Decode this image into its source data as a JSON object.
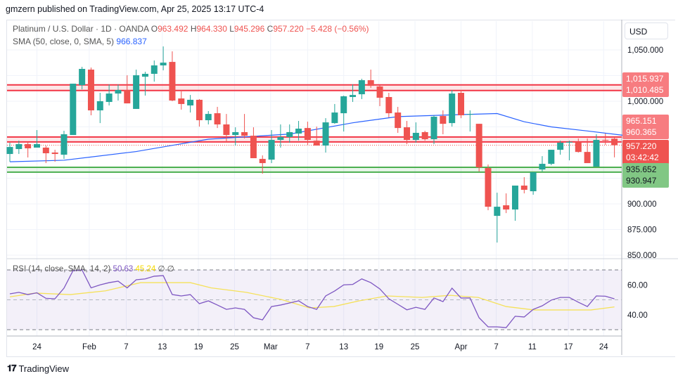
{
  "publish_line": "gmzern published on TradingView.com, Apr 25, 2025 13:17 UTC-4",
  "legend": {
    "symbol": "Platinum / U.S. Dollar · 1D · OANDA",
    "o_label": "O",
    "o": "963.492",
    "h_label": "H",
    "h": "964.330",
    "l_label": "L",
    "l": "945.296",
    "c_label": "C",
    "c": "957.220",
    "change": "−5.428 (−0.56%)",
    "sma_label": "SMA (50, close, 0, SMA, 5)",
    "sma_value": "966.837",
    "rsi_label": "RSI (14, close, SMA, 14, 2)",
    "rsi_value": "50.63",
    "rsi_sma_value": "45.24",
    "rsi_extra": "∅ ∅"
  },
  "currency": "USD",
  "brand": "TradingView",
  "colors": {
    "up": "#26a69a",
    "down": "#ef5350",
    "sma": "#2962ff",
    "rsi": "#7e57c2",
    "rsi_sma": "#f5e15a",
    "zone_red": "#f23645",
    "zone_green": "#4caf50"
  },
  "chart_data": [
    {
      "type": "candlestick",
      "title": "Platinum / U.S. Dollar · 1D · OANDA",
      "ylim": [
        850,
        1065
      ],
      "price_ticks": [
        "1,050.000",
        "1,000.000",
        "900.000",
        "875.000",
        "850.000"
      ],
      "price_tick_values": [
        1050,
        1000,
        900,
        875,
        850
      ],
      "x_ticks": [
        {
          "label": "24",
          "index": 3
        },
        {
          "label": "Feb",
          "index": 8.8
        },
        {
          "label": "7",
          "index": 12.9
        },
        {
          "label": "13",
          "index": 16.9
        },
        {
          "label": "19",
          "index": 20.9
        },
        {
          "label": "25",
          "index": 24.9
        },
        {
          "label": "Mar",
          "index": 28.9
        },
        {
          "label": "7",
          "index": 33
        },
        {
          "label": "13",
          "index": 37
        },
        {
          "label": "19",
          "index": 40.9
        },
        {
          "label": "25",
          "index": 44.9
        },
        {
          "label": "Apr",
          "index": 50
        },
        {
          "label": "7",
          "index": 53.9
        },
        {
          "label": "11",
          "index": 57.9
        },
        {
          "label": "17",
          "index": 61.9
        },
        {
          "label": "24",
          "index": 65.8
        }
      ],
      "ohlc": [
        [
          948.6,
          959.6,
          941.1,
          955.4
        ],
        [
          953.4,
          961.6,
          948.6,
          958.2
        ],
        [
          958.2,
          960.2,
          945.2,
          954.1
        ],
        [
          954.8,
          971.9,
          954.8,
          958.2
        ],
        [
          954.8,
          956.8,
          939.7,
          949.3
        ],
        [
          950.0,
          952.7,
          941.1,
          948.6
        ],
        [
          947.9,
          971.2,
          943.8,
          967.8
        ],
        [
          967.1,
          1017.1,
          967.1,
          1017.1
        ],
        [
          1015.7,
          1033.5,
          1011.6,
          1031.5
        ],
        [
          1030.8,
          1032.8,
          986.3,
          991.1
        ],
        [
          991.1,
          1008.2,
          978.7,
          1000.0
        ],
        [
          999.3,
          1016.4,
          995.9,
          1007.5
        ],
        [
          1007.5,
          1016.4,
          1000.7,
          1010.9
        ],
        [
          1010.9,
          1025.3,
          997.9,
          997.9
        ],
        [
          992.5,
          1030.8,
          992.5,
          1025.3
        ],
        [
          1023.9,
          1028.7,
          1005.5,
          1026.7
        ],
        [
          1026.7,
          1039.7,
          1019.1,
          1034.9
        ],
        [
          1034.9,
          1053.4,
          1030.1,
          1037.6
        ],
        [
          1038.3,
          1048.6,
          1000.0,
          1000.7
        ],
        [
          1002.7,
          1009.6,
          991.8,
          997.3
        ],
        [
          995.9,
          1006.1,
          989.0,
          1001.4
        ],
        [
          1001.4,
          1002.1,
          975.3,
          981.5
        ],
        [
          981.5,
          990.4,
          977.4,
          987.6
        ],
        [
          988.3,
          994.5,
          973.9,
          977.4
        ],
        [
          977.4,
          987.6,
          959.6,
          967.1
        ],
        [
          967.1,
          974.6,
          956.8,
          969.9
        ],
        [
          969.9,
          987.6,
          963.7,
          966.4
        ],
        [
          966.4,
          974.6,
          944.5,
          944.5
        ],
        [
          943.8,
          947.2,
          929.4,
          939.7
        ],
        [
          943.1,
          971.9,
          939.7,
          962.3
        ],
        [
          962.3,
          977.4,
          954.8,
          965.1
        ],
        [
          965.1,
          977.4,
          959.6,
          969.9
        ],
        [
          968.5,
          980.8,
          961.6,
          973.3
        ],
        [
          973.9,
          980.1,
          957.5,
          962.3
        ],
        [
          961.6,
          975.3,
          956.8,
          956.8
        ],
        [
          956.8,
          983.5,
          950.0,
          979.4
        ],
        [
          978.7,
          997.3,
          978.0,
          989.0
        ],
        [
          988.3,
          1005.5,
          970.5,
          1004.8
        ],
        [
          1004.1,
          1016.4,
          999.3,
          1006.1
        ],
        [
          1006.8,
          1021.9,
          1002.1,
          1020.5
        ],
        [
          1020.5,
          1030.8,
          1013.0,
          1015.0
        ],
        [
          1014.4,
          1015.7,
          995.2,
          1003.4
        ],
        [
          1004.1,
          1008.2,
          984.2,
          988.3
        ],
        [
          989.0,
          994.5,
          969.2,
          973.9
        ],
        [
          974.6,
          980.8,
          958.2,
          962.3
        ],
        [
          962.3,
          979.4,
          959.6,
          969.2
        ],
        [
          969.9,
          971.2,
          961.6,
          963.0
        ],
        [
          963.0,
          986.3,
          958.2,
          984.9
        ],
        [
          985.6,
          991.1,
          967.8,
          978.0
        ],
        [
          978.7,
          1010.9,
          975.3,
          1007.5
        ],
        [
          1008.2,
          1010.9,
          983.5,
          986.3
        ],
        [
          986.9,
          991.1,
          970.5,
          987.6
        ],
        [
          978.0,
          978.0,
          931.5,
          935.6
        ],
        [
          934.9,
          938.3,
          893.8,
          897.2
        ],
        [
          888.3,
          910.9,
          862.3,
          897.2
        ],
        [
          898.6,
          910.2,
          891.0,
          894.5
        ],
        [
          894.5,
          917.8,
          883.5,
          917.8
        ],
        [
          917.8,
          926.0,
          910.2,
          913.7
        ],
        [
          912.3,
          930.8,
          908.9,
          930.8
        ],
        [
          933.5,
          946.5,
          931.5,
          939.0
        ],
        [
          939.0,
          952.7,
          937.6,
          952.7
        ],
        [
          952.7,
          961.6,
          947.9,
          959.6
        ],
        [
          960.2,
          961.6,
          942.4,
          960.4
        ],
        [
          960.2,
          963.7,
          950.0,
          950.6
        ],
        [
          950.6,
          963.7,
          939.7,
          939.7
        ],
        [
          936.3,
          967.8,
          936.3,
          962.3
        ],
        [
          962.3,
          968.5,
          957.5,
          962.0
        ],
        [
          963.492,
          964.33,
          945.296,
          957.22
        ]
      ],
      "sma50": [
        [
          0,
          941
        ],
        [
          6,
          942.5
        ],
        [
          14,
          951
        ],
        [
          22,
          963
        ],
        [
          31,
          968
        ],
        [
          38,
          979
        ],
        [
          43,
          985
        ],
        [
          50,
          987
        ],
        [
          54,
          988
        ],
        [
          57,
          980
        ],
        [
          60,
          975
        ],
        [
          64,
          971
        ],
        [
          68,
          966.8
        ]
      ],
      "levels": [
        {
          "value": 1015.937,
          "label": "1,015.937",
          "kind": "resistance"
        },
        {
          "value": 1010.485,
          "label": "1,010.485",
          "kind": "resistance"
        },
        {
          "value": 965.151,
          "label": "965.151",
          "kind": "resistance"
        },
        {
          "value": 960.365,
          "label": "960.365",
          "kind": "resistance"
        },
        {
          "value": 935.652,
          "label": "935.652",
          "kind": "support"
        },
        {
          "value": 930.947,
          "label": "930.947",
          "kind": "support"
        }
      ],
      "last_price": {
        "value": 957.22,
        "label": "957.220",
        "countdown": "03:42:42"
      }
    },
    {
      "type": "line",
      "title": "RSI (14, close, SMA, 14, 2)",
      "ylim": [
        25,
        75
      ],
      "bands": [
        30,
        50,
        70
      ],
      "ticks": [
        "60.00",
        "40.00"
      ],
      "tick_values": [
        60,
        40
      ],
      "rsi": [
        54,
        55,
        53.5,
        54.7,
        51,
        50.7,
        57.8,
        69.5,
        70,
        58,
        60,
        61.5,
        62.5,
        58,
        63.4,
        64,
        65.8,
        66.2,
        53.5,
        52.6,
        53.5,
        47.4,
        49.3,
        46.5,
        43.6,
        44.6,
        43.6,
        38,
        36.6,
        45.5,
        46.5,
        47.9,
        49.3,
        45.5,
        43.6,
        52.6,
        55.9,
        60,
        60.3,
        64,
        61.5,
        57.3,
        50.7,
        47,
        43.3,
        45,
        43.6,
        51.2,
        48.8,
        57.8,
        51.2,
        51.2,
        38,
        31.9,
        31.9,
        31.4,
        39,
        38.5,
        43.6,
        46,
        49.8,
        51.6,
        51.6,
        48.4,
        45.5,
        52.6,
        52.4,
        50.63
      ],
      "rsi_sma": [
        [
          0,
          52
        ],
        [
          2.8,
          54.5
        ],
        [
          6.7,
          53.5
        ],
        [
          10.6,
          56
        ],
        [
          14.5,
          61.5
        ],
        [
          17,
          61.5
        ],
        [
          20,
          61.5
        ],
        [
          22.3,
          58
        ],
        [
          26.2,
          55
        ],
        [
          30.1,
          50.2
        ],
        [
          33.2,
          44.6
        ],
        [
          35.9,
          45.5
        ],
        [
          38.7,
          49.3
        ],
        [
          41.8,
          52.6
        ],
        [
          45.7,
          51.6
        ],
        [
          48.8,
          53
        ],
        [
          51.9,
          51.6
        ],
        [
          55,
          45.5
        ],
        [
          58.1,
          43.2
        ],
        [
          61.3,
          43.2
        ],
        [
          64.4,
          43.2
        ],
        [
          67,
          45.24
        ]
      ]
    }
  ]
}
